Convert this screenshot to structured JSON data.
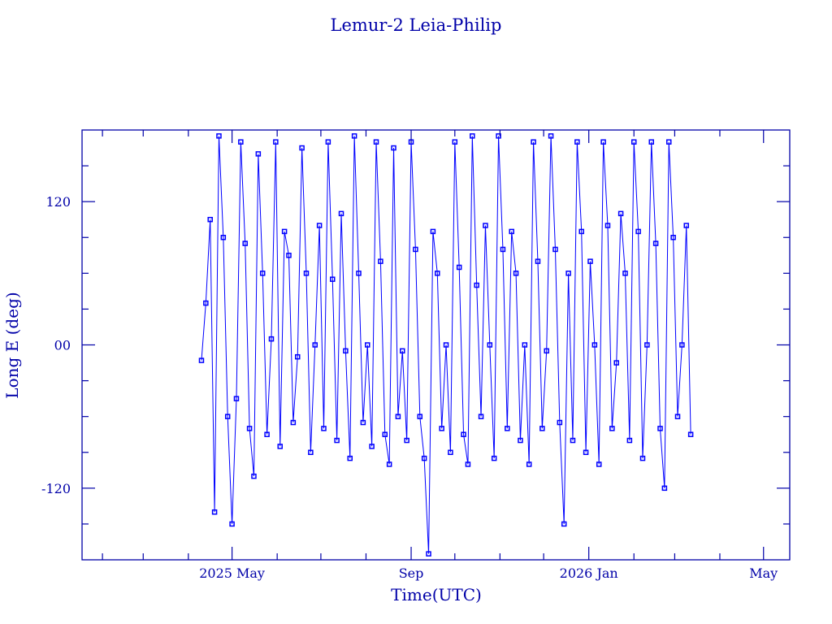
{
  "chart_data": {
    "type": "line",
    "title": "Lemur-2 Leia-Philip",
    "xlabel": "Time(UTC)",
    "ylabel": "Long E (deg)",
    "xlim": [
      "2025-01-18",
      "2026-05-19"
    ],
    "ylim": [
      -180,
      180
    ],
    "x_tick_labels": [
      {
        "date": "2025-05-01",
        "label": "2025 May"
      },
      {
        "date": "2025-09-01",
        "label": "Sep"
      },
      {
        "date": "2026-01-01",
        "label": "2026 Jan"
      },
      {
        "date": "2026-05-01",
        "label": "May"
      }
    ],
    "y_tick_labels": [
      {
        "value": 120,
        "label": "120"
      },
      {
        "value": 0,
        "label": "00"
      },
      {
        "value": -120,
        "label": "-120"
      }
    ],
    "grid": false,
    "markers": "square",
    "colors": {
      "axes": "#0000a8",
      "series": "#0000ff"
    },
    "series": [
      {
        "start": "2025-04-10",
        "step_days": 3,
        "values": [
          -13,
          35,
          105,
          -140,
          175,
          90,
          -60,
          -150,
          -45,
          170,
          85,
          -70,
          -110,
          160,
          60,
          -75,
          5,
          170,
          -85,
          95,
          75,
          -65,
          -10,
          165,
          60,
          -90,
          0,
          100,
          -70,
          170,
          55,
          -80,
          110,
          -5,
          -95,
          175,
          60,
          -65,
          0,
          -85,
          170,
          70,
          -75,
          -100,
          165,
          -60,
          -5,
          -80,
          170,
          80,
          -60,
          -95,
          -175,
          95,
          60,
          -70,
          0,
          -90,
          170,
          65,
          -75,
          -100,
          175,
          50,
          -60,
          100,
          0,
          -95,
          175,
          80,
          -70,
          95,
          60,
          -80,
          0,
          -100,
          170,
          70,
          -70,
          -5,
          175,
          80,
          -65,
          -150,
          60,
          -80,
          170,
          95,
          -90,
          70,
          0,
          -100,
          170,
          100,
          -70,
          -15,
          110,
          60,
          -80,
          170,
          95,
          -95,
          0,
          170,
          85,
          -70,
          -120,
          170,
          90,
          -60,
          0,
          100,
          -75
        ]
      }
    ]
  }
}
